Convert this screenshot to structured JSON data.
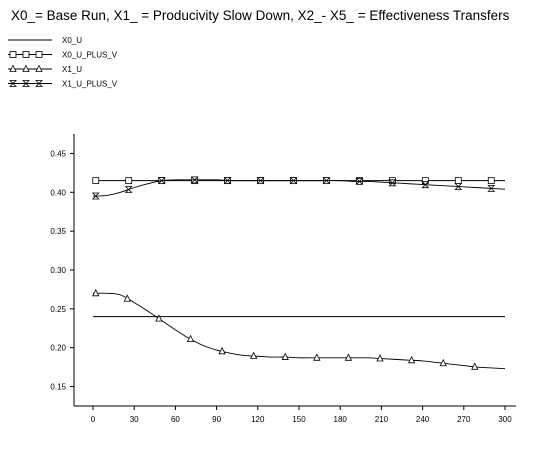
{
  "chart_data": {
    "type": "line",
    "title": "X0_= Base Run, X1_ = Producivity Slow Down, X2_- X5_ = Effectiveness Transfers",
    "xlabel": "",
    "ylabel": "",
    "xlim": [
      0,
      300
    ],
    "ylim": [
      0.125,
      0.475
    ],
    "x_ticks": [
      0,
      30,
      60,
      90,
      120,
      150,
      180,
      210,
      240,
      270,
      300
    ],
    "y_ticks": [
      0.15,
      0.2,
      0.25,
      0.3,
      0.35,
      0.4,
      0.45
    ],
    "x_tick_labels": [
      "0",
      "30",
      "60",
      "90",
      "120",
      "150",
      "180",
      "210",
      "240",
      "270",
      "300"
    ],
    "y_tick_labels": [
      "0.15",
      "0.20",
      "0.25",
      "0.30",
      "0.35",
      "0.40",
      "0.45"
    ],
    "grid": false,
    "legend_position": "top-left",
    "series": [
      {
        "name": "X0_U",
        "marker": "none",
        "x": [
          0,
          300
        ],
        "y": [
          0.24,
          0.24
        ]
      },
      {
        "name": "X0_U_PLUS_V",
        "marker": "square",
        "x": [
          0,
          300
        ],
        "y": [
          0.415,
          0.415
        ],
        "marker_x": [
          2,
          26,
          50,
          74,
          98,
          122,
          146,
          170,
          194,
          218,
          242,
          266,
          290
        ]
      },
      {
        "name": "X1_U",
        "marker": "triangle",
        "x": [
          0,
          10,
          20,
          30,
          40,
          50,
          60,
          70,
          80,
          90,
          100,
          110,
          120,
          130,
          140,
          150,
          160,
          170,
          180,
          190,
          200,
          210,
          220,
          230,
          240,
          250,
          260,
          270,
          280,
          290,
          300
        ],
        "y": [
          0.27,
          0.27,
          0.268,
          0.258,
          0.247,
          0.235,
          0.223,
          0.212,
          0.203,
          0.197,
          0.193,
          0.19,
          0.189,
          0.188,
          0.188,
          0.187,
          0.187,
          0.187,
          0.187,
          0.187,
          0.187,
          0.186,
          0.185,
          0.184,
          0.183,
          0.181,
          0.179,
          0.177,
          0.175,
          0.174,
          0.173
        ],
        "marker_x": [
          2,
          25,
          48,
          71,
          94,
          117,
          140,
          163,
          186,
          209,
          232,
          255,
          278
        ]
      },
      {
        "name": "X1_U_PLUS_V",
        "marker": "hourglass",
        "x": [
          0,
          10,
          20,
          30,
          40,
          50,
          60,
          70,
          80,
          90,
          100,
          110,
          120,
          130,
          140,
          150,
          160,
          170,
          180,
          190,
          200,
          210,
          220,
          230,
          240,
          250,
          260,
          270,
          280,
          290,
          300
        ],
        "y": [
          0.395,
          0.396,
          0.4,
          0.406,
          0.411,
          0.415,
          0.416,
          0.416,
          0.416,
          0.416,
          0.415,
          0.415,
          0.415,
          0.415,
          0.415,
          0.415,
          0.415,
          0.415,
          0.415,
          0.414,
          0.414,
          0.413,
          0.412,
          0.411,
          0.41,
          0.409,
          0.408,
          0.407,
          0.406,
          0.405,
          0.404
        ],
        "marker_x": [
          2,
          26,
          50,
          74,
          98,
          122,
          146,
          170,
          194,
          218,
          242,
          266,
          290
        ]
      }
    ]
  }
}
